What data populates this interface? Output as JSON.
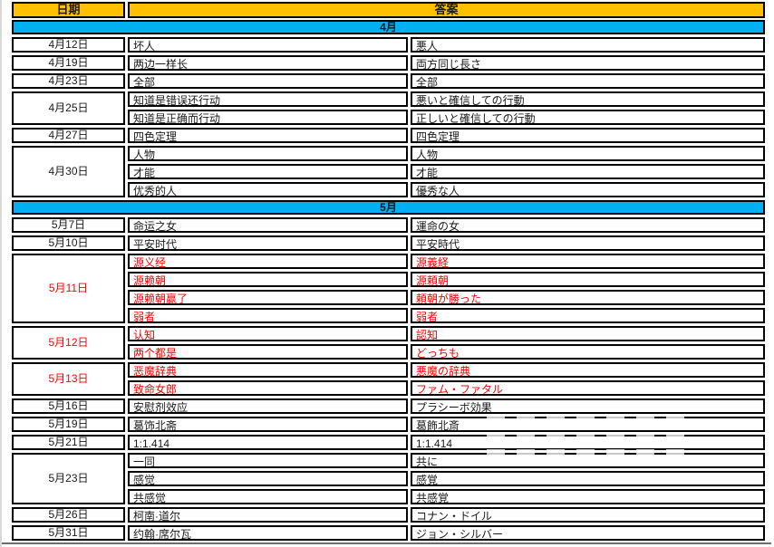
{
  "palette": {
    "header_bg": "#FFC000",
    "month_bg": "#00B0F0",
    "border": "#000000",
    "red_text": "#FF0000",
    "text": "#1a1a1a"
  },
  "table": {
    "columns": [
      "日期",
      "答案"
    ],
    "sections": [
      {
        "month": "4月",
        "groups": [
          {
            "date": "4月12日",
            "red": false,
            "answers": [
              {
                "cn": "坏人",
                "jp": "悪人",
                "red": false
              }
            ]
          },
          {
            "date": "4月19日",
            "red": false,
            "answers": [
              {
                "cn": "两边一样长",
                "jp": "両方同じ長さ",
                "red": false
              }
            ]
          },
          {
            "date": "4月23日",
            "red": false,
            "answers": [
              {
                "cn": "全部",
                "jp": "全部",
                "red": false
              }
            ]
          },
          {
            "date": "4月25日",
            "red": false,
            "answers": [
              {
                "cn": "知道是错误还行动",
                "jp": "悪いと確信しての行動",
                "red": false
              },
              {
                "cn": "知道是正确而行动",
                "jp": "正しいと確信しての行動",
                "red": false
              }
            ]
          },
          {
            "date": "4月27日",
            "red": false,
            "answers": [
              {
                "cn": "四色定理",
                "jp": "四色定理",
                "red": false
              }
            ]
          },
          {
            "date": "4月30日",
            "red": false,
            "answers": [
              {
                "cn": "人物",
                "jp": "人物",
                "red": false
              },
              {
                "cn": "才能",
                "jp": "才能",
                "red": false
              },
              {
                "cn": "优秀的人",
                "jp": "優秀な人",
                "red": false
              }
            ]
          }
        ]
      },
      {
        "month": "5月",
        "groups": [
          {
            "date": "5月7日",
            "red": false,
            "answers": [
              {
                "cn": "命运之女",
                "jp": "運命の女",
                "red": false
              }
            ]
          },
          {
            "date": "5月10日",
            "red": false,
            "answers": [
              {
                "cn": "平安时代",
                "jp": "平安時代",
                "red": false
              }
            ]
          },
          {
            "date": "5月11日",
            "red": true,
            "answers": [
              {
                "cn": "源义经",
                "jp": "源義経",
                "red": true
              },
              {
                "cn": "源赖朝",
                "jp": "源頼朝",
                "red": true
              },
              {
                "cn": "源赖朝赢了",
                "jp": "頼朝が勝った",
                "red": true
              },
              {
                "cn": "弱者",
                "jp": "弱者",
                "red": true
              }
            ]
          },
          {
            "date": "5月12日",
            "red": true,
            "answers": [
              {
                "cn": "认知",
                "jp": "認知",
                "red": true
              },
              {
                "cn": "两个都是",
                "jp": "どっちも",
                "red": true
              }
            ]
          },
          {
            "date": "5月13日",
            "red": true,
            "answers": [
              {
                "cn": "恶魔辞典",
                "jp": "悪魔の辞典",
                "red": true
              },
              {
                "cn": "致命女郎",
                "jp": "ファム・ファタル",
                "red": true
              }
            ]
          },
          {
            "date": "5月16日",
            "red": false,
            "answers": [
              {
                "cn": "安慰剂效应",
                "jp": "プラシーボ効果",
                "red": false
              }
            ]
          },
          {
            "date": "5月19日",
            "red": false,
            "answers": [
              {
                "cn": "葛饰北斋",
                "jp": "葛飾北斎",
                "red": false
              }
            ]
          },
          {
            "date": "5月21日",
            "red": false,
            "answers": [
              {
                "cn": "1:1.414",
                "jp": "1:1.414",
                "red": false
              }
            ]
          },
          {
            "date": "5月23日",
            "red": false,
            "answers": [
              {
                "cn": "一同",
                "jp": "共に",
                "red": false
              },
              {
                "cn": "感觉",
                "jp": "感覚",
                "red": false
              },
              {
                "cn": "共感觉",
                "jp": "共感覚",
                "red": false
              }
            ]
          },
          {
            "date": "5月26日",
            "red": false,
            "answers": [
              {
                "cn": "柯南·道尔",
                "jp": "コナン・ドイル",
                "red": false
              }
            ]
          },
          {
            "date": "5月31日",
            "red": false,
            "answers": [
              {
                "cn": "约翰·席尔瓦",
                "jp": "ジョン・シルバー",
                "red": false
              }
            ]
          }
        ]
      }
    ]
  }
}
